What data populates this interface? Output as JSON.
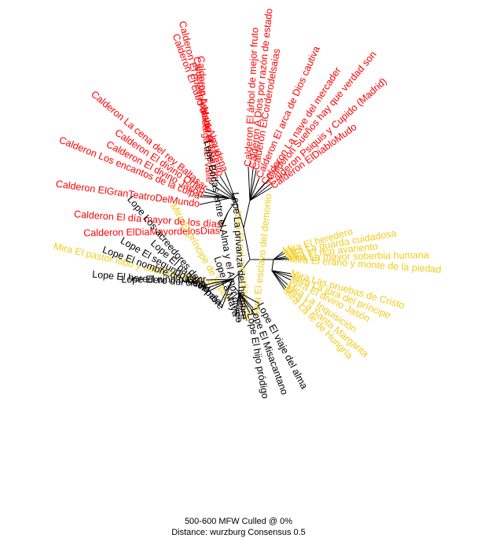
{
  "colors": {
    "Calderon": "#ff0000",
    "Mira": "#f2cc1a",
    "Lope": "#000000",
    "branch": "#000000"
  },
  "caption": {
    "line1": "500-600 MFW  Culled @ 0%",
    "line2": "Distance: wurzburg Consensus 0.5"
  },
  "labels": [
    {
      "text": "Calderon El cubo de la Almudena",
      "group": "Calderon"
    },
    {
      "text": "Calderon El nuevo palacio del Retiro",
      "group": "Calderon"
    },
    {
      "text": "Calderon A María el corazón",
      "group": "Calderon"
    },
    {
      "text": "Calderon La hidalga del valle",
      "group": "Calderon"
    },
    {
      "text": "Calderon La cena del rey Baltasar",
      "group": "Calderon"
    },
    {
      "text": "Calderon El divino Orfeo",
      "group": "Calderon"
    },
    {
      "text": "Calderon El divino Jasón",
      "group": "Calderon"
    },
    {
      "text": "Calderon Los encantos de la culpa",
      "group": "Calderon"
    },
    {
      "text": "Calderon ElGranTeatroDelMundo",
      "group": "Calderon"
    },
    {
      "text": "Calderon El día mayor de los días",
      "group": "Calderon"
    },
    {
      "text": "Calderon ElDiaMayordelosDias",
      "group": "Calderon"
    },
    {
      "text": "Calderon El árbol de mejor fruto",
      "group": "Calderon"
    },
    {
      "text": "Calderon A Dios por razón de estado",
      "group": "Calderon"
    },
    {
      "text": "Calderon ElCorderodelsaias",
      "group": "Calderon"
    },
    {
      "text": "Calderon El arca de Dios cautiva",
      "group": "Calderon"
    },
    {
      "text": "Calderon La nave del mercader",
      "group": "Calderon"
    },
    {
      "text": "Calderon Sueños hay que verdad son",
      "group": "Calderon"
    },
    {
      "text": "Calderon Psiquis y Cupido (Madrid)",
      "group": "Calderon"
    },
    {
      "text": "Calderon ElDiabloMudo",
      "group": "Calderon"
    },
    {
      "text": "Mira El heredero",
      "group": "Mira"
    },
    {
      "text": "Mira La guarda cuidadosa",
      "group": "Mira"
    },
    {
      "text": "Mira El rico avariento",
      "group": "Mira"
    },
    {
      "text": "Mira La mayor soberbia humana",
      "group": "Mira"
    },
    {
      "text": "Mira El erario y monte de la piedad",
      "group": "Mira"
    },
    {
      "text": "Mira Las pruebas de Cristo",
      "group": "Mira"
    },
    {
      "text": "Mira La jura del príncipe",
      "group": "Mira"
    },
    {
      "text": "Mira El divino Jasón",
      "group": "Mira"
    },
    {
      "text": "Mira La Inquisición",
      "group": "Mira"
    },
    {
      "text": "Mira La Santa Margarita",
      "group": "Mira"
    },
    {
      "text": "Mira La fe de Hungría",
      "group": "Mira"
    },
    {
      "text": "Mira El pastor lobo y cabaña celestial",
      "group": "Mira"
    },
    {
      "text": "Mira El príncipe de la paz",
      "group": "Mira"
    },
    {
      "text": "Mira El sol a medianoche",
      "group": "Mira"
    },
    {
      "text": "Mira El esclavo del demonio",
      "group": "Mira"
    },
    {
      "text": "Lope El niño pastor",
      "group": "Lope"
    },
    {
      "text": "Lope El heredero del cielo",
      "group": "Lope"
    },
    {
      "text": "Lope El nombre de Jesús",
      "group": "Lope"
    },
    {
      "text": "Lope El segundo David",
      "group": "Lope"
    },
    {
      "text": "Lope El pan y el palo",
      "group": "Lope"
    },
    {
      "text": "Lope Los acreedores del hombre",
      "group": "Lope"
    },
    {
      "text": "Lope La Maya",
      "group": "Lope"
    },
    {
      "text": "Lope Bodas entre el Alma y el Amor divino",
      "group": "Lope"
    },
    {
      "text": "Lope La privanza del hombre",
      "group": "Lope"
    },
    {
      "text": "Lope El hijo pródigo",
      "group": "Lope"
    },
    {
      "text": "Lope El Misacantano",
      "group": "Lope"
    },
    {
      "text": "Lope El viaje del alma",
      "group": "Lope"
    }
  ]
}
